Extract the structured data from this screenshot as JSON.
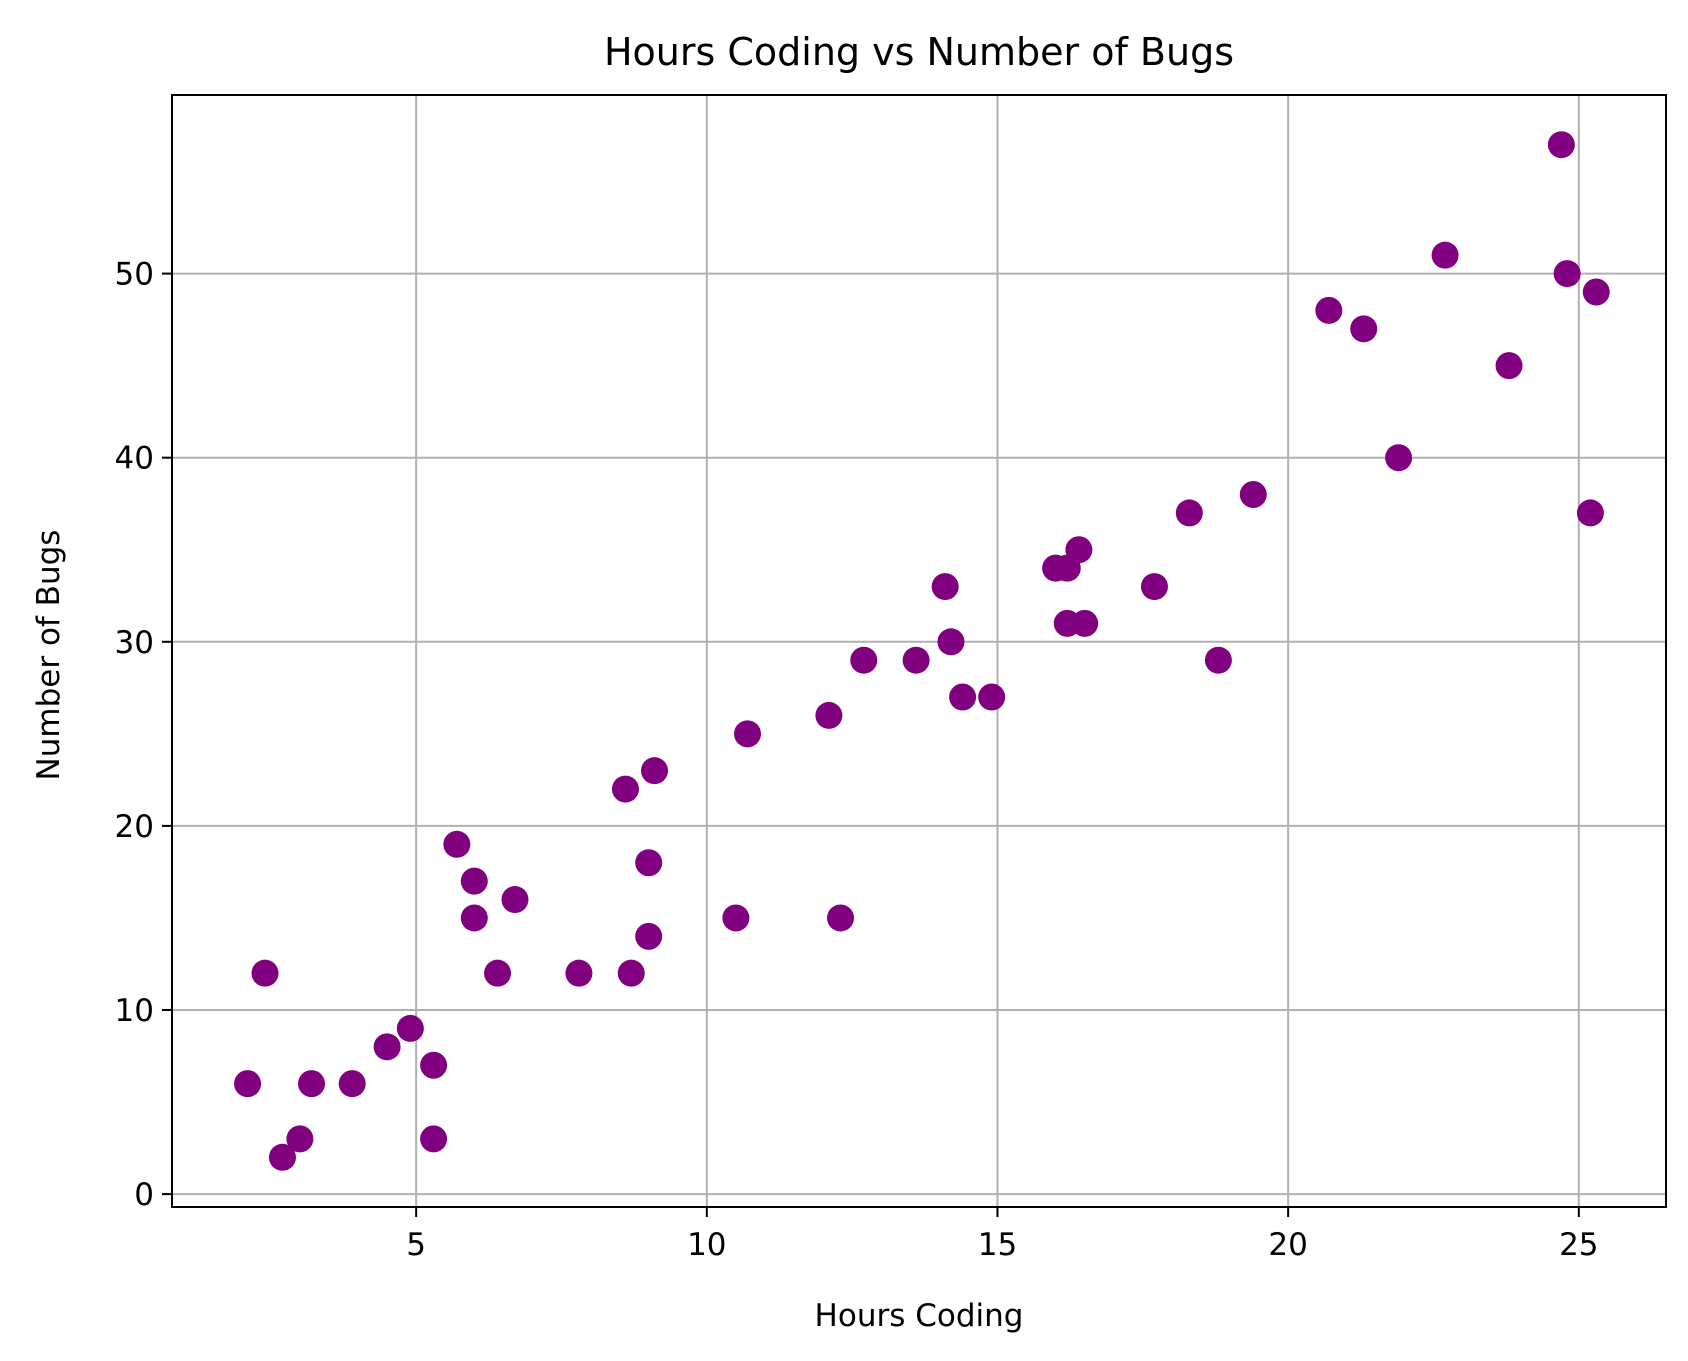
{
  "chart_data": {
    "type": "scatter",
    "title": "Hours Coding vs Number of Bugs",
    "xlabel": "Hours Coding",
    "ylabel": "Number of Bugs",
    "xlim": [
      0.8,
      26.5
    ],
    "ylim": [
      -0.7,
      59.7
    ],
    "xticks": [
      5,
      10,
      15,
      20,
      25
    ],
    "yticks": [
      0,
      10,
      20,
      30,
      40,
      50
    ],
    "grid": true,
    "point_color": "#800080",
    "points": [
      {
        "x": 2.1,
        "y": 6
      },
      {
        "x": 2.4,
        "y": 12
      },
      {
        "x": 2.7,
        "y": 2
      },
      {
        "x": 3.0,
        "y": 3
      },
      {
        "x": 3.2,
        "y": 6
      },
      {
        "x": 3.9,
        "y": 6
      },
      {
        "x": 4.5,
        "y": 8
      },
      {
        "x": 4.9,
        "y": 9
      },
      {
        "x": 5.3,
        "y": 7
      },
      {
        "x": 5.3,
        "y": 3
      },
      {
        "x": 5.7,
        "y": 19
      },
      {
        "x": 6.0,
        "y": 17
      },
      {
        "x": 6.0,
        "y": 15
      },
      {
        "x": 6.4,
        "y": 12
      },
      {
        "x": 6.7,
        "y": 16
      },
      {
        "x": 7.8,
        "y": 12
      },
      {
        "x": 8.6,
        "y": 22
      },
      {
        "x": 8.7,
        "y": 12
      },
      {
        "x": 9.0,
        "y": 18
      },
      {
        "x": 9.0,
        "y": 14
      },
      {
        "x": 9.1,
        "y": 23
      },
      {
        "x": 10.5,
        "y": 15
      },
      {
        "x": 10.7,
        "y": 25
      },
      {
        "x": 12.1,
        "y": 26
      },
      {
        "x": 12.3,
        "y": 15
      },
      {
        "x": 12.7,
        "y": 29
      },
      {
        "x": 13.6,
        "y": 29
      },
      {
        "x": 14.1,
        "y": 33
      },
      {
        "x": 14.2,
        "y": 30
      },
      {
        "x": 14.4,
        "y": 27
      },
      {
        "x": 14.9,
        "y": 27
      },
      {
        "x": 16.0,
        "y": 34
      },
      {
        "x": 16.2,
        "y": 34
      },
      {
        "x": 16.2,
        "y": 31
      },
      {
        "x": 16.4,
        "y": 35
      },
      {
        "x": 16.5,
        "y": 31
      },
      {
        "x": 17.7,
        "y": 33
      },
      {
        "x": 18.3,
        "y": 37
      },
      {
        "x": 18.8,
        "y": 29
      },
      {
        "x": 19.4,
        "y": 38
      },
      {
        "x": 20.7,
        "y": 48
      },
      {
        "x": 21.3,
        "y": 47
      },
      {
        "x": 21.9,
        "y": 40
      },
      {
        "x": 22.7,
        "y": 51
      },
      {
        "x": 23.8,
        "y": 45
      },
      {
        "x": 24.7,
        "y": 57
      },
      {
        "x": 24.8,
        "y": 50
      },
      {
        "x": 25.2,
        "y": 37
      },
      {
        "x": 25.3,
        "y": 49
      }
    ]
  }
}
